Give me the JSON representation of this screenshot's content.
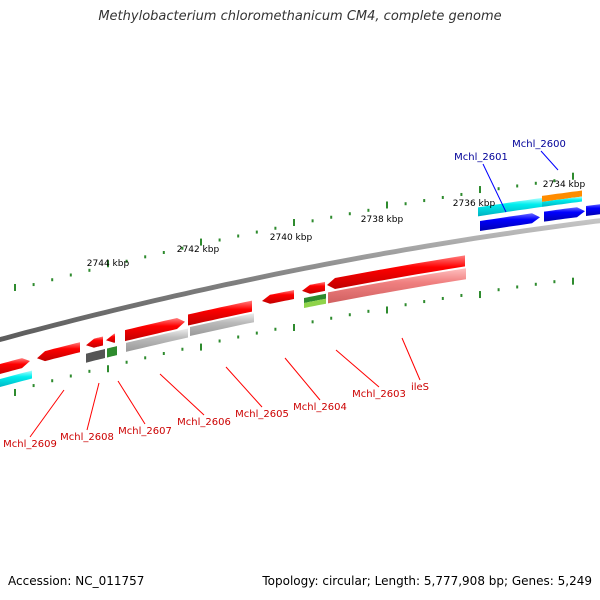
{
  "title": "Methylobacterium chloromethanicum CM4, complete genome",
  "footer": {
    "accession": "Accession: NC_011757",
    "info": "Topology: circular; Length: 5,777,908 bp; Genes: 5,249"
  },
  "kbp_labels": [
    "2744 kbp",
    "2742 kbp",
    "2740 kbp",
    "2738 kbp",
    "2736 kbp",
    "2734 kbp"
  ],
  "gene_labels_red": [
    "Mchl_2609",
    "Mchl_2608",
    "Mchl_2607",
    "Mchl_2606",
    "Mchl_2605",
    "Mchl_2604",
    "Mchl_2603",
    "ileS"
  ],
  "gene_labels_blue": [
    "Mchl_2601",
    "Mchl_2600"
  ],
  "colors": {
    "cds": "#ff0000",
    "cds_outer": "#0000ff",
    "rna_light": "#b8b8b8",
    "rna_pink": "#f08080",
    "cyan": "#00e5ee",
    "orange": "#ff8c00",
    "green": "#2e8b2e",
    "dark": "#555555",
    "tick": "#2e8b2e",
    "backbone": "#808080",
    "label_red": "#cc0000",
    "label_blue": "#000099"
  }
}
